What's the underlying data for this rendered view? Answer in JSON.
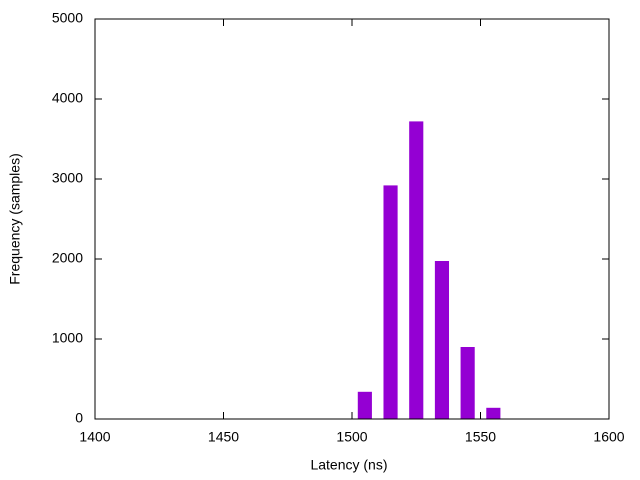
{
  "chart_data": {
    "type": "bar",
    "x_label": "Latency (ns)",
    "y_label": "Frequency (samples)",
    "x": [
      1505,
      1515,
      1525,
      1535,
      1545,
      1555
    ],
    "values": [
      340,
      2920,
      3720,
      1975,
      900,
      140
    ],
    "color": "#9400d3",
    "xlim": [
      1400,
      1600
    ],
    "xticks": [
      1400,
      1450,
      1500,
      1550,
      1600
    ],
    "ylim": [
      0,
      5000
    ],
    "yticks": [
      0,
      1000,
      2000,
      3000,
      4000,
      5000
    ],
    "grid": false
  }
}
